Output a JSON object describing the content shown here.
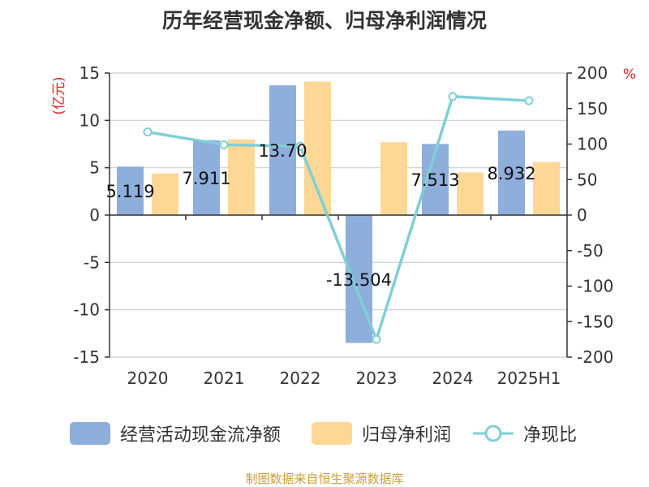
{
  "chart_data": {
    "type": "bar",
    "title": "历年经营现金净额、归母净利润情况",
    "categories": [
      "2020",
      "2021",
      "2022",
      "2023",
      "2024",
      "2025H1"
    ],
    "ylabel_left": "(亿元)",
    "ylabel_right": "%",
    "ylim_left": [
      -15,
      15
    ],
    "ylim_right": [
      -200,
      200
    ],
    "yticks_left": [
      "15",
      "10",
      "5",
      "0",
      "-5",
      "-10",
      "-15"
    ],
    "yticks_right": [
      "200",
      "150",
      "100",
      "50",
      "0",
      "-50",
      "-100",
      "-150",
      "-200"
    ],
    "grid": true,
    "legend_position": "bottom",
    "series": [
      {
        "name": "经营活动现金流净额",
        "kind": "bar",
        "axis": "left",
        "color": "#8eaedb",
        "values": [
          5.119,
          7.911,
          13.703,
          -13.504,
          7.513,
          8.932
        ],
        "labels": [
          "5.119",
          "7.911",
          "13.70",
          "-13.504",
          "7.513",
          "8.932"
        ]
      },
      {
        "name": "归母净利润",
        "kind": "bar",
        "axis": "left",
        "color": "#fdd795",
        "values": [
          4.4,
          8.0,
          14.1,
          7.7,
          4.5,
          5.6
        ]
      },
      {
        "name": "净现比",
        "kind": "line",
        "axis": "right",
        "color": "#7fcfd6",
        "values": [
          117,
          99,
          97,
          -175,
          167,
          161
        ]
      }
    ]
  },
  "footer": "制图数据来自恒生聚源数据库"
}
